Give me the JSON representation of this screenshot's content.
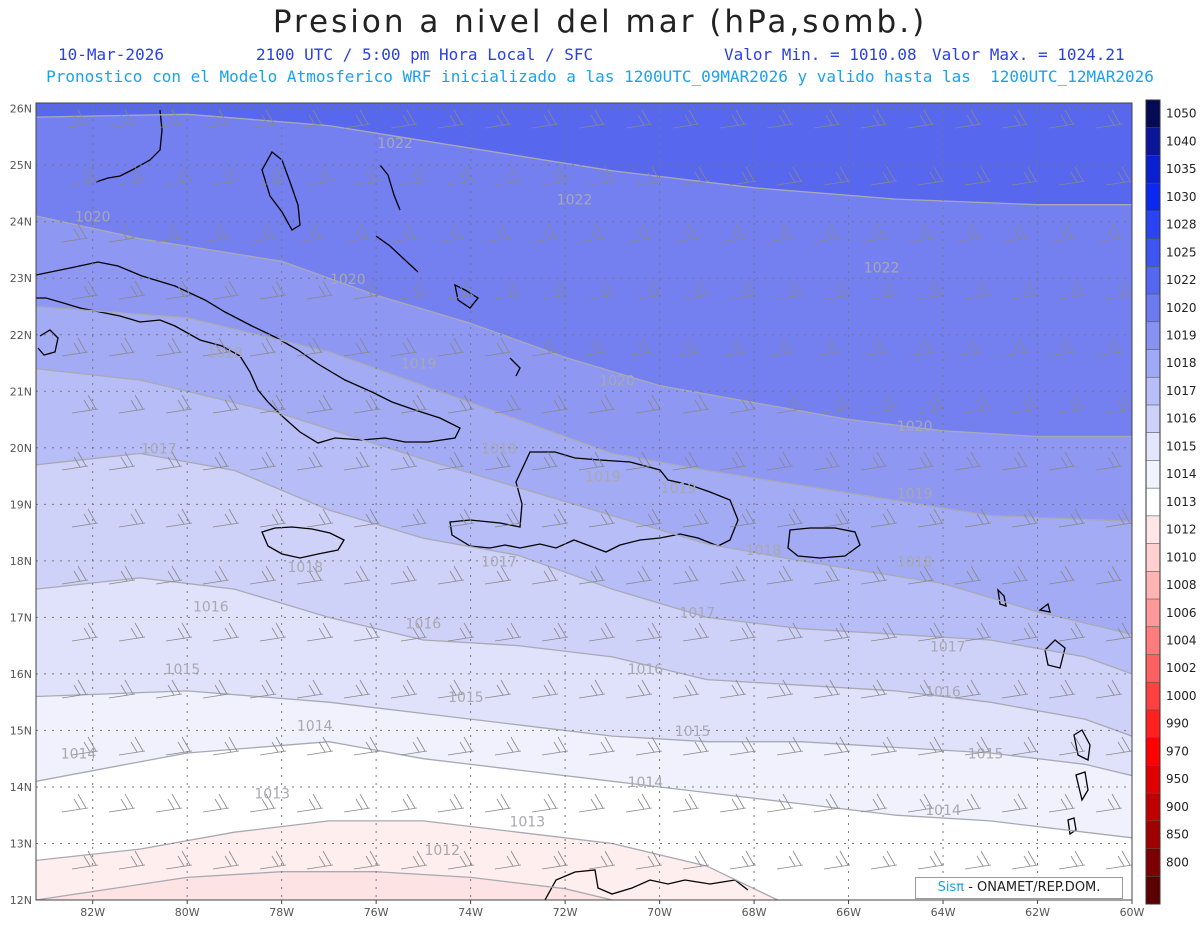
{
  "header": {
    "title": "Presion a nivel del mar (hPa,somb.)",
    "date": "10-Mar-2026",
    "time": "2100 UTC / 5:00 pm Hora Local / SFC",
    "min_label": "Valor Min. = 1010.08",
    "max_label": "Valor Max. = 1024.21",
    "model_line": "Pronostico con el Modelo Atmosferico WRF inicializado a las 1200UTC_09MAR2026 y valido hasta las  1200UTC_12MAR2026"
  },
  "map_data": {
    "variable": "Presion a nivel del mar",
    "units": "hPa",
    "lon_range": [
      -83.2,
      -60
    ],
    "lat_range": [
      12,
      26.1
    ],
    "lon_labels": [
      "82W",
      "80W",
      "78W",
      "76W",
      "74W",
      "72W",
      "70W",
      "68W",
      "66W",
      "64W",
      "62W",
      "60W"
    ],
    "lat_labels": [
      "26N",
      "25N",
      "24N",
      "23N",
      "22N",
      "21N",
      "20N",
      "19N",
      "18N",
      "17N",
      "16N",
      "15N",
      "14N",
      "13N",
      "12N"
    ],
    "contours": [
      {
        "level": 1022,
        "pts": [
          [
            -83.2,
            25.85
          ],
          [
            -80,
            25.9
          ],
          [
            -77,
            25.7
          ],
          [
            -74,
            25.3
          ],
          [
            -71,
            24.9
          ],
          [
            -68,
            24.6
          ],
          [
            -65,
            24.4
          ],
          [
            -62,
            24.3
          ],
          [
            -60,
            24.3
          ]
        ]
      },
      {
        "level": 1020,
        "pts": [
          [
            -83.2,
            24.1
          ],
          [
            -81,
            23.7
          ],
          [
            -78,
            23.3
          ],
          [
            -76,
            22.7
          ],
          [
            -74,
            22.2
          ],
          [
            -72,
            21.6
          ],
          [
            -70,
            21.1
          ],
          [
            -68,
            20.8
          ],
          [
            -66,
            20.5
          ],
          [
            -64,
            20.3
          ],
          [
            -62,
            20.2
          ],
          [
            -60,
            20.2
          ]
        ]
      },
      {
        "level": 1019,
        "pts": [
          [
            -83.2,
            22.5
          ],
          [
            -80,
            22.3
          ],
          [
            -77,
            21.7
          ],
          [
            -75,
            21.1
          ],
          [
            -73,
            20.5
          ],
          [
            -71,
            19.9
          ],
          [
            -69,
            19.6
          ],
          [
            -66,
            19.2
          ],
          [
            -63,
            18.8
          ],
          [
            -60,
            18.7
          ]
        ]
      },
      {
        "level": 1018,
        "pts": [
          [
            -83.2,
            21.4
          ],
          [
            -81,
            21.2
          ],
          [
            -78,
            20.6
          ],
          [
            -75,
            19.8
          ],
          [
            -73,
            19.3
          ],
          [
            -71,
            18.8
          ],
          [
            -69,
            18.3
          ],
          [
            -67,
            18.0
          ],
          [
            -64,
            17.6
          ],
          [
            -62,
            17.1
          ],
          [
            -60,
            16.7
          ]
        ]
      },
      {
        "level": 1017,
        "pts": [
          [
            -83.2,
            19.7
          ],
          [
            -81,
            19.9
          ],
          [
            -79,
            19.6
          ],
          [
            -77,
            18.9
          ],
          [
            -75,
            18.4
          ],
          [
            -73,
            18.1
          ],
          [
            -71,
            17.5
          ],
          [
            -69,
            17.0
          ],
          [
            -67,
            16.8
          ],
          [
            -65,
            16.7
          ],
          [
            -63,
            16.6
          ],
          [
            -61,
            16.3
          ],
          [
            -60,
            16.0
          ]
        ]
      },
      {
        "level": 1016,
        "pts": [
          [
            -83.2,
            17.5
          ],
          [
            -81,
            17.7
          ],
          [
            -79,
            17.5
          ],
          [
            -77,
            17.0
          ],
          [
            -75,
            16.6
          ],
          [
            -73,
            16.5
          ],
          [
            -71,
            16.3
          ],
          [
            -69,
            15.9
          ],
          [
            -67,
            15.8
          ],
          [
            -65,
            15.7
          ],
          [
            -63,
            15.5
          ],
          [
            -61,
            15.2
          ],
          [
            -60,
            14.9
          ]
        ]
      },
      {
        "level": 1015,
        "pts": [
          [
            -83.2,
            15.6
          ],
          [
            -80,
            15.7
          ],
          [
            -77,
            15.5
          ],
          [
            -75,
            15.3
          ],
          [
            -73,
            15.1
          ],
          [
            -71,
            14.9
          ],
          [
            -69,
            14.8
          ],
          [
            -67,
            14.8
          ],
          [
            -65,
            14.7
          ],
          [
            -63,
            14.6
          ],
          [
            -61,
            14.4
          ],
          [
            -60,
            14.2
          ]
        ]
      },
      {
        "level": 1014,
        "pts": [
          [
            -83.2,
            14.1
          ],
          [
            -80,
            14.6
          ],
          [
            -77,
            14.8
          ],
          [
            -75,
            14.5
          ],
          [
            -73,
            14.3
          ],
          [
            -71,
            14.1
          ],
          [
            -69,
            13.9
          ],
          [
            -67,
            13.7
          ],
          [
            -65,
            13.5
          ],
          [
            -63,
            13.4
          ],
          [
            -61,
            13.2
          ],
          [
            -60,
            13.1
          ]
        ]
      },
      {
        "level": 1013,
        "pts": [
          [
            -83.2,
            12.7
          ],
          [
            -81,
            12.9
          ],
          [
            -79,
            13.2
          ],
          [
            -77,
            13.4
          ],
          [
            -75,
            13.4
          ],
          [
            -73,
            13.2
          ],
          [
            -71,
            13.0
          ],
          [
            -69,
            12.6
          ],
          [
            -67.5,
            12.0
          ]
        ]
      },
      {
        "level": 1012,
        "pts": [
          [
            -83.2,
            12.0
          ],
          [
            -80,
            12.4
          ],
          [
            -78,
            12.5
          ],
          [
            -76,
            12.5
          ],
          [
            -74,
            12.4
          ],
          [
            -72,
            12.2
          ],
          [
            -71,
            12.0
          ]
        ]
      }
    ],
    "contour_labels": [
      {
        "text": "1022",
        "lon": -75.6,
        "lat": 25.3
      },
      {
        "text": "1022",
        "lon": -71.8,
        "lat": 24.3
      },
      {
        "text": "1022",
        "lon": -65.3,
        "lat": 23.1
      },
      {
        "text": "1020",
        "lon": -82.0,
        "lat": 24.0
      },
      {
        "text": "1020",
        "lon": -76.6,
        "lat": 22.9
      },
      {
        "text": "1020",
        "lon": -70.9,
        "lat": 21.1
      },
      {
        "text": "1020",
        "lon": -64.6,
        "lat": 20.3
      },
      {
        "text": "1019",
        "lon": -75.1,
        "lat": 21.4
      },
      {
        "text": "1019",
        "lon": -71.2,
        "lat": 19.4
      },
      {
        "text": "1019",
        "lon": -69.6,
        "lat": 19.2
      },
      {
        "text": "1019",
        "lon": -64.6,
        "lat": 19.1
      },
      {
        "text": "1018",
        "lon": -79.2,
        "lat": 21.6
      },
      {
        "text": "1018",
        "lon": -73.4,
        "lat": 19.9
      },
      {
        "text": "1018",
        "lon": -67.8,
        "lat": 18.1
      },
      {
        "text": "1018",
        "lon": -64.6,
        "lat": 17.9
      },
      {
        "text": "1018",
        "lon": -77.5,
        "lat": 17.8
      },
      {
        "text": "1017",
        "lon": -80.6,
        "lat": 19.9
      },
      {
        "text": "1017",
        "lon": -73.4,
        "lat": 17.9
      },
      {
        "text": "1017",
        "lon": -69.2,
        "lat": 17.0
      },
      {
        "text": "1017",
        "lon": -63.9,
        "lat": 16.4
      },
      {
        "text": "1016",
        "lon": -79.5,
        "lat": 17.1
      },
      {
        "text": "1016",
        "lon": -75.0,
        "lat": 16.8
      },
      {
        "text": "1016",
        "lon": -70.3,
        "lat": 16.0
      },
      {
        "text": "1016",
        "lon": -64.0,
        "lat": 15.6
      },
      {
        "text": "1015",
        "lon": -80.1,
        "lat": 16.0
      },
      {
        "text": "1015",
        "lon": -74.1,
        "lat": 15.5
      },
      {
        "text": "1015",
        "lon": -69.3,
        "lat": 14.9
      },
      {
        "text": "1015",
        "lon": -63.1,
        "lat": 14.5
      },
      {
        "text": "1014",
        "lon": -82.3,
        "lat": 14.5
      },
      {
        "text": "1014",
        "lon": -77.3,
        "lat": 15.0
      },
      {
        "text": "1014",
        "lon": -70.3,
        "lat": 14.0
      },
      {
        "text": "1014",
        "lon": -64.0,
        "lat": 13.5
      },
      {
        "text": "1013",
        "lon": -78.2,
        "lat": 13.8
      },
      {
        "text": "1013",
        "lon": -72.8,
        "lat": 13.3
      },
      {
        "text": "1012",
        "lon": -74.6,
        "lat": 12.8
      }
    ]
  },
  "colorbar": {
    "levels": [
      "1050",
      "1040",
      "1035",
      "1030",
      "1028",
      "1025",
      "1022",
      "1020",
      "1019",
      "1018",
      "1017",
      "1016",
      "1015",
      "1014",
      "1013",
      "1012",
      "1010",
      "1008",
      "1006",
      "1004",
      "1002",
      "1000",
      "990",
      "970",
      "950",
      "900",
      "850",
      "800"
    ],
    "colors": [
      "#050a55",
      "#0a159a",
      "#0a1fd0",
      "#0a28f0",
      "#2a44f4",
      "#3f55f2",
      "#5566f0",
      "#6d7bf1",
      "#8792f3",
      "#a0a9f5",
      "#b8bef7",
      "#cdd1fa",
      "#e2e5fc",
      "#f2f3fe",
      "#ffffff",
      "#ffe6e6",
      "#ffd0d0",
      "#ffb4b4",
      "#ff9898",
      "#ff7c7c",
      "#ff6060",
      "#ff4040",
      "#ff2020",
      "#ff0000",
      "#e00000",
      "#c00000",
      "#a00000",
      "#7c0000",
      "#5a0000"
    ]
  },
  "credit": {
    "sis": "Sisπ",
    "org": "- ONAMET/REP.DOM."
  },
  "fill_colors": {
    "lt1012": "#fde3e3",
    "1012_1013": "#feeeee",
    "1013_1014": "#ffffff",
    "1014_1015": "#f0f1fd",
    "1015_1016": "#e0e2fb",
    "1016_1017": "#cfd2f8",
    "1017_1018": "#b7bdf6",
    "1018_1019": "#a3abf4",
    "1019_1020": "#8e98f2",
    "1020_1022": "#7480f0",
    "gt1022": "#5868ee"
  }
}
